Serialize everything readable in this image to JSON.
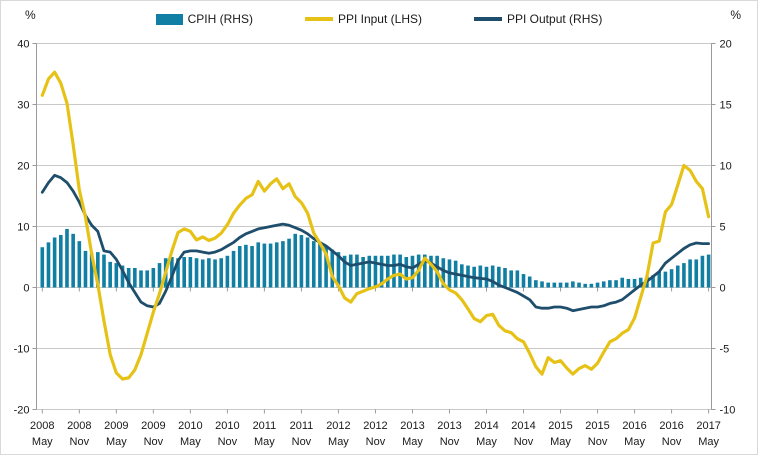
{
  "chart_data": {
    "type": "combo-bar-line",
    "title": "",
    "frequency": "monthly",
    "start": "May 2008",
    "end": "May 2017",
    "left_axis": {
      "label": "%",
      "ticks": [
        40,
        30,
        20,
        10,
        0,
        -10,
        -20
      ],
      "range": [
        -20,
        40
      ]
    },
    "right_axis": {
      "label": "%",
      "ticks": [
        20,
        15,
        10,
        5,
        0,
        -5,
        -10
      ],
      "range": [
        -10,
        20
      ]
    },
    "x_labels": [
      {
        "year": "2008",
        "month": "May"
      },
      {
        "year": "2008",
        "month": "Nov"
      },
      {
        "year": "2009",
        "month": "May"
      },
      {
        "year": "2009",
        "month": "Nov"
      },
      {
        "year": "2010",
        "month": "May"
      },
      {
        "year": "2010",
        "month": "Nov"
      },
      {
        "year": "2011",
        "month": "May"
      },
      {
        "year": "2011",
        "month": "Nov"
      },
      {
        "year": "2012",
        "month": "May"
      },
      {
        "year": "2012",
        "month": "Nov"
      },
      {
        "year": "2013",
        "month": "May"
      },
      {
        "year": "2013",
        "month": "Nov"
      },
      {
        "year": "2014",
        "month": "May"
      },
      {
        "year": "2014",
        "month": "Nov"
      },
      {
        "year": "2015",
        "month": "May"
      },
      {
        "year": "2015",
        "month": "Nov"
      },
      {
        "year": "2016",
        "month": "May"
      },
      {
        "year": "2016",
        "month": "Nov"
      },
      {
        "year": "2017",
        "month": "May"
      }
    ],
    "series": [
      {
        "name": "CPIH (RHS)",
        "type": "bar",
        "axis": "RHS",
        "color": "#117ea3",
        "values": [
          3.3,
          3.7,
          4.1,
          4.3,
          4.8,
          4.4,
          3.8,
          3.0,
          2.8,
          2.9,
          2.7,
          2.1,
          2.0,
          1.8,
          1.6,
          1.6,
          1.4,
          1.4,
          1.6,
          2.0,
          2.4,
          2.5,
          2.4,
          2.5,
          2.5,
          2.4,
          2.3,
          2.4,
          2.3,
          2.4,
          2.6,
          3.0,
          3.4,
          3.5,
          3.4,
          3.7,
          3.6,
          3.6,
          3.7,
          3.8,
          4.0,
          4.4,
          4.3,
          4.1,
          3.8,
          3.7,
          3.4,
          3.1,
          2.9,
          2.6,
          2.7,
          2.7,
          2.5,
          2.6,
          2.6,
          2.6,
          2.6,
          2.7,
          2.7,
          2.5,
          2.6,
          2.7,
          2.7,
          2.6,
          2.6,
          2.4,
          2.3,
          2.2,
          1.9,
          1.8,
          1.7,
          1.8,
          1.7,
          1.8,
          1.7,
          1.6,
          1.4,
          1.4,
          1.1,
          0.9,
          0.6,
          0.5,
          0.4,
          0.4,
          0.4,
          0.4,
          0.5,
          0.4,
          0.3,
          0.3,
          0.4,
          0.5,
          0.6,
          0.6,
          0.8,
          0.7,
          0.7,
          0.8,
          0.9,
          1.0,
          1.3,
          1.3,
          1.5,
          1.8,
          2.0,
          2.3,
          2.3,
          2.6,
          2.7
        ]
      },
      {
        "name": "PPI Input (LHS)",
        "type": "line",
        "axis": "LHS",
        "color": "#e6c217",
        "values": [
          31.5,
          34.2,
          35.3,
          33.5,
          30.2,
          23.5,
          16.0,
          11.5,
          5.5,
          0.5,
          -5.5,
          -11.0,
          -14.0,
          -15.0,
          -14.8,
          -13.5,
          -11.0,
          -7.5,
          -4.0,
          -1.0,
          2.5,
          6.0,
          9.0,
          9.6,
          9.2,
          7.8,
          8.3,
          7.7,
          8.1,
          8.9,
          10.3,
          12.2,
          13.5,
          14.6,
          15.2,
          17.4,
          15.8,
          17.0,
          17.8,
          16.2,
          17.0,
          14.9,
          13.9,
          12.2,
          8.9,
          7.3,
          5.5,
          1.8,
          0.3,
          -1.7,
          -2.4,
          -1.0,
          -0.6,
          -0.2,
          0.1,
          0.6,
          1.4,
          2.0,
          2.2,
          1.4,
          1.6,
          2.8,
          4.8,
          3.8,
          2.6,
          0.6,
          -0.4,
          -0.9,
          -2.0,
          -3.5,
          -5.1,
          -5.6,
          -4.6,
          -4.4,
          -6.2,
          -7.1,
          -7.4,
          -8.4,
          -8.9,
          -10.8,
          -13.0,
          -14.2,
          -11.5,
          -12.3,
          -12.0,
          -13.2,
          -14.2,
          -13.3,
          -12.8,
          -13.4,
          -12.4,
          -10.6,
          -8.9,
          -8.4,
          -7.5,
          -6.9,
          -5.0,
          -1.6,
          1.8,
          7.3,
          7.6,
          12.4,
          13.6,
          16.8,
          20.0,
          19.2,
          17.4,
          16.2,
          11.6
        ]
      },
      {
        "name": "PPI Output (RHS)",
        "type": "line",
        "axis": "RHS",
        "color": "#1f4e6d",
        "values": [
          7.8,
          8.6,
          9.2,
          9.0,
          8.6,
          7.9,
          7.0,
          5.9,
          5.1,
          4.6,
          3.0,
          2.9,
          2.3,
          1.4,
          0.4,
          -0.4,
          -1.2,
          -1.5,
          -1.6,
          -1.3,
          -0.3,
          0.9,
          2.2,
          2.9,
          3.0,
          3.0,
          2.9,
          2.8,
          2.9,
          3.1,
          3.4,
          3.7,
          4.1,
          4.4,
          4.6,
          4.8,
          4.9,
          5.0,
          5.1,
          5.2,
          5.1,
          4.9,
          4.7,
          4.4,
          4.0,
          3.7,
          3.4,
          3.0,
          2.6,
          2.1,
          1.8,
          1.9,
          2.0,
          2.1,
          2.0,
          1.9,
          1.8,
          1.8,
          1.9,
          1.7,
          1.6,
          1.9,
          2.2,
          2.0,
          1.7,
          1.4,
          1.2,
          1.1,
          1.0,
          0.9,
          0.8,
          0.75,
          0.7,
          0.5,
          0.2,
          0.0,
          -0.2,
          -0.4,
          -0.7,
          -1.0,
          -1.6,
          -1.7,
          -1.7,
          -1.6,
          -1.6,
          -1.7,
          -1.9,
          -1.8,
          -1.7,
          -1.6,
          -1.6,
          -1.5,
          -1.3,
          -1.2,
          -1.0,
          -0.6,
          -0.2,
          0.2,
          0.5,
          0.9,
          1.3,
          2.0,
          2.4,
          2.8,
          3.2,
          3.5,
          3.65,
          3.6,
          3.6
        ]
      }
    ],
    "legend_position": "top-center",
    "grid": true,
    "style": {
      "grid_color": "#c9c9c9",
      "axis_color": "#9b9b9b",
      "tick_color": "#9b9b9b",
      "text_color": "#1a1a1a"
    }
  }
}
